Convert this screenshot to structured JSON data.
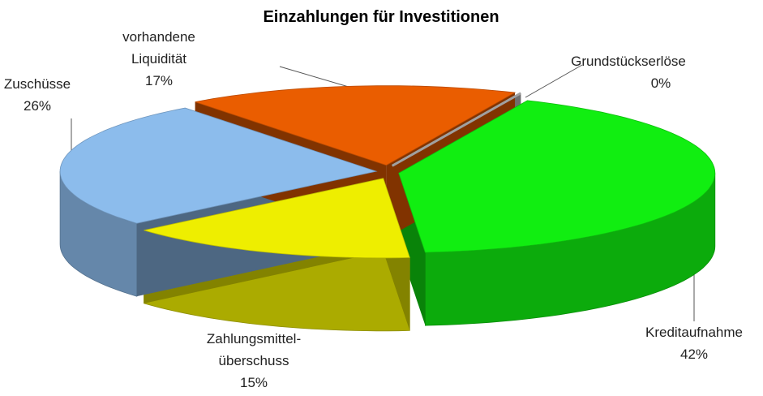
{
  "chart_data": {
    "type": "pie3d",
    "title": "Einzahlungen für Investitionen",
    "categories": [
      "Grundstückserlöse",
      "Kreditaufnahme",
      "Zahlungsmittel-\nüberschuss",
      "Zuschüsse",
      "vorhandene\nLiquidität"
    ],
    "values": [
      0,
      42,
      15,
      26,
      17
    ],
    "value_labels": [
      "0%",
      "42%",
      "15%",
      "26%",
      "17%"
    ],
    "colors": [
      "#c8c8c8",
      "#11ee11",
      "#eeee00",
      "#8cbcec",
      "#ea5d00"
    ]
  }
}
